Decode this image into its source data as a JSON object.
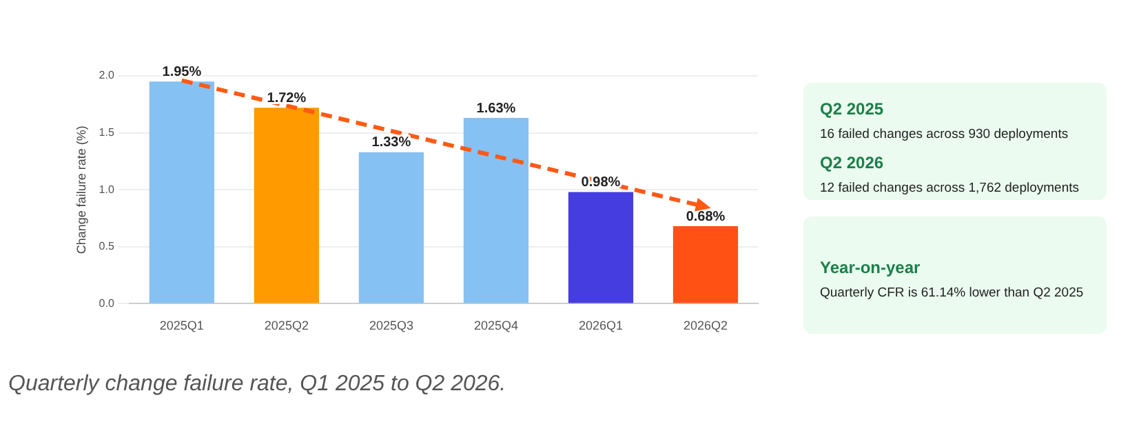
{
  "chart_data": [
    {
      "type": "bar",
      "ylabel": "Change failure rate (%)",
      "categories": [
        "2025Q1",
        "2025Q2",
        "2025Q3",
        "2025Q4",
        "2026Q1",
        "2026Q2"
      ],
      "series": [
        {
          "type": "bar",
          "colors": [
            "#85c1f2",
            "#ff9a00",
            "#85c1f2",
            "#85c1f2",
            "#463de0",
            "#ff5114"
          ],
          "values": [
            1.95,
            1.72,
            1.33,
            1.63,
            0.98,
            0.68
          ],
          "value_labels": [
            "1.95%",
            "1.72%",
            "1.33%",
            "1.63%",
            "0.98%",
            "0.68%"
          ]
        },
        {
          "type": "line",
          "color": "#ff5a14",
          "line_style": "dashed",
          "x": [
            "2025Q1",
            "2026Q2"
          ],
          "values": [
            1.96,
            0.85
          ]
        }
      ],
      "ylim": [
        0,
        2
      ],
      "yticks": [
        {
          "value": 0,
          "label": "0.0"
        },
        0.5,
        {
          "value": 1,
          "label": "1.0"
        },
        1.5,
        {
          "value": 2,
          "label": "2.0"
        }
      ],
      "grid": "y",
      "legend": false,
      "annotations": [
        "Quarterly change failure rate, Q1 2025 to Q2 2026."
      ]
    },
    {
      "type": "other",
      "annotations": [
        "Q2 2025",
        "16 failed changes across 930 deployments",
        "Q2 2026",
        "12 failed changes across 1,762 deployments",
        "Year-on-year",
        "Quarterly CFR is 61.14% lower than Q2 2025"
      ]
    }
  ]
}
